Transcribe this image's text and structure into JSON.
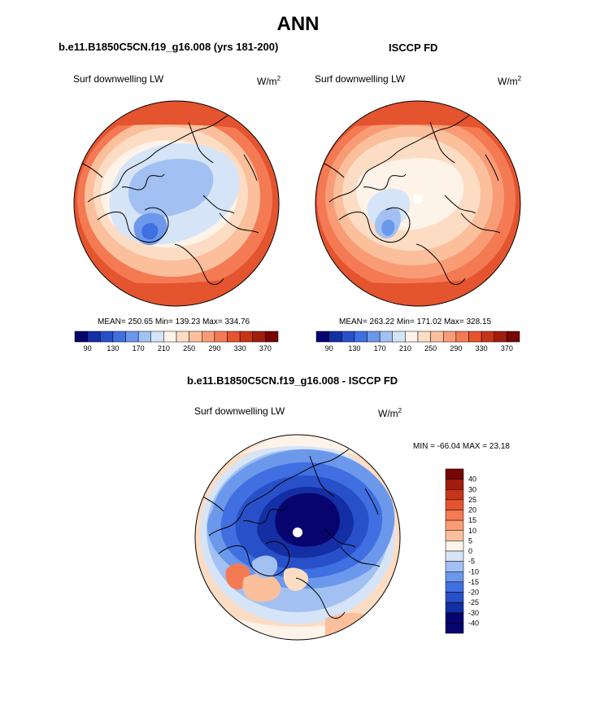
{
  "page": {
    "title": "ANN",
    "left_title": "b.e11.B1850C5CN.f19_g16.008 (yrs 181-200)",
    "right_title": "ISCCP FD",
    "diff_title": "b.e11.B1850C5CN.f19_g16.008 - ISCCP FD"
  },
  "chart_data": [
    {
      "type": "heatmap",
      "projection": "north-polar-stereographic",
      "title": "b.e11.B1850C5CN.f19_g16.008 (yrs 181-200)",
      "variable": "Surf downwelling LW",
      "units": "W/m",
      "units_superscript": "2",
      "stats": "MEAN= 250.65  Min= 139.23  Max= 334.76",
      "mean": 250.65,
      "min": 139.23,
      "max": 334.76,
      "colorbar": {
        "labels": [
          "90",
          "130",
          "170",
          "210",
          "250",
          "290",
          "330",
          "370"
        ],
        "colors": [
          "#08046e",
          "#142ea4",
          "#2850c8",
          "#3f6fe0",
          "#6c98ec",
          "#a2c0f2",
          "#d6e4f8",
          "#fdf3e8",
          "#fddcc4",
          "#fcbf9c",
          "#f99c76",
          "#f47a54",
          "#e4542e",
          "#c63519",
          "#a11d0e",
          "#780606"
        ]
      }
    },
    {
      "type": "heatmap",
      "projection": "north-polar-stereographic",
      "title": "ISCCP FD",
      "variable": "Surf downwelling LW",
      "units": "W/m",
      "units_superscript": "2",
      "stats": "MEAN= 263.22  Min= 171.02  Max= 328.15",
      "mean": 263.22,
      "min": 171.02,
      "max": 328.15,
      "colorbar": {
        "labels": [
          "90",
          "130",
          "170",
          "210",
          "250",
          "290",
          "330",
          "370"
        ],
        "colors": [
          "#08046e",
          "#142ea4",
          "#2850c8",
          "#3f6fe0",
          "#6c98ec",
          "#a2c0f2",
          "#d6e4f8",
          "#fdf3e8",
          "#fddcc4",
          "#fcbf9c",
          "#f99c76",
          "#f47a54",
          "#e4542e",
          "#c63519",
          "#a11d0e",
          "#780606"
        ]
      }
    },
    {
      "type": "heatmap",
      "projection": "north-polar-stereographic",
      "title": "b.e11.B1850C5CN.f19_g16.008 - ISCCP FD",
      "variable": "Surf downwelling LW",
      "units": "W/m",
      "units_superscript": "2",
      "stats": "MIN = -66.04 MAX =  23.18",
      "min": -66.04,
      "max": 23.18,
      "colorbar": {
        "labels": [
          "40",
          "30",
          "25",
          "20",
          "15",
          "10",
          "5",
          "0",
          "-5",
          "-10",
          "-15",
          "-20",
          "-25",
          "-30",
          "-40"
        ],
        "colors": [
          "#780606",
          "#a11d0e",
          "#c63519",
          "#e4542e",
          "#f47a54",
          "#f99c76",
          "#fcbf9c",
          "#fdf3e8",
          "#d6e4f8",
          "#a2c0f2",
          "#6c98ec",
          "#3f6fe0",
          "#2850c8",
          "#142ea4",
          "#08046e",
          "#08046e"
        ]
      }
    }
  ]
}
